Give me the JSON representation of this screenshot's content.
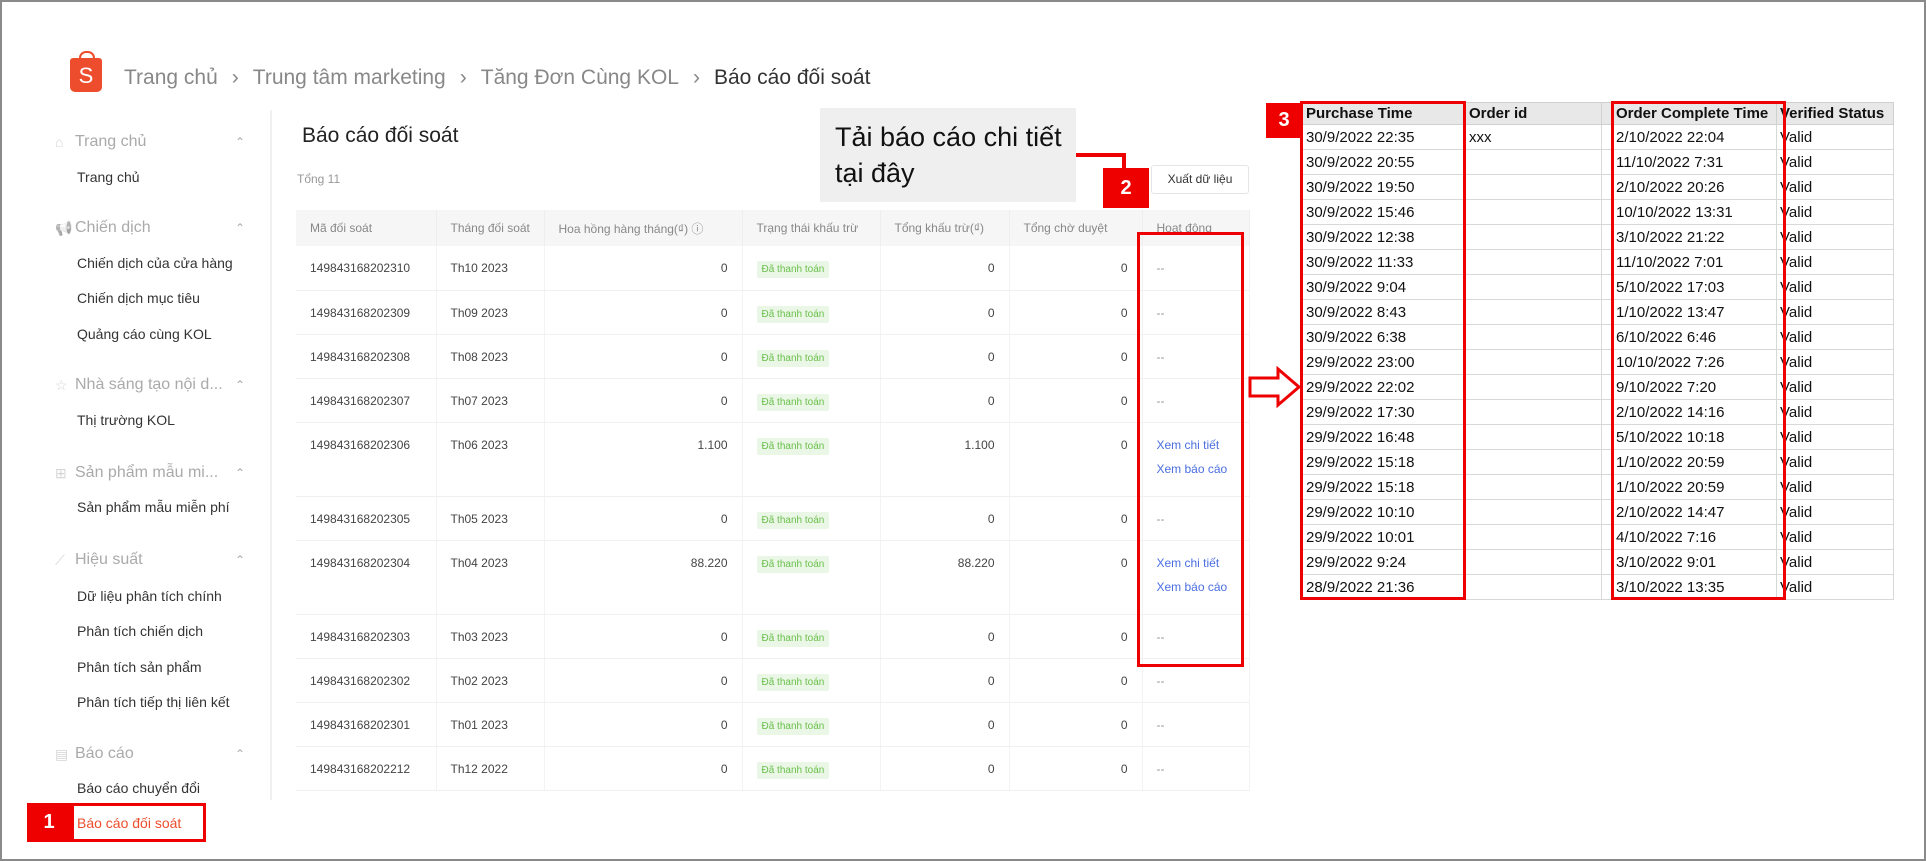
{
  "breadcrumb": [
    "Trang chủ",
    "Trung tâm marketing",
    "Tăng Đơn Cùng KOL",
    "Báo cáo đối soát"
  ],
  "logo_letter": "S",
  "sidebar": {
    "sections": [
      {
        "label": "Trang chủ",
        "icon": "home-icon",
        "items": [
          "Trang chủ"
        ]
      },
      {
        "label": "Chiến dịch",
        "icon": "megaphone-icon",
        "items": [
          "Chiến dịch của cửa hàng",
          "Chiến dịch mục tiêu",
          "Quảng cáo cùng KOL"
        ]
      },
      {
        "label": "Nhà sáng tạo nội d...",
        "icon": "star-icon",
        "items": [
          "Thị trường KOL"
        ]
      },
      {
        "label": "Sản phẩm mẫu mi...",
        "icon": "gift-icon",
        "items": [
          "Sản phẩm mẫu miễn phí"
        ]
      },
      {
        "label": "Hiệu suất",
        "icon": "chart-icon",
        "items": [
          "Dữ liệu phân tích chính",
          "Phân tích chiến dịch",
          "Phân tích sản phẩm",
          "Phân tích tiếp thị liên kết"
        ]
      },
      {
        "label": "Báo cáo",
        "icon": "report-icon",
        "items": [
          "Báo cáo chuyển đổi",
          "Báo cáo đối soát"
        ]
      }
    ],
    "active": "Báo cáo đối soát"
  },
  "main": {
    "title": "Báo cáo đối soát",
    "total": "Tổng 11",
    "export_label": "Xuất dữ liệu",
    "columns": [
      "Mã đối soát",
      "Tháng đối soát",
      "Hoa hồng hàng tháng(₫)",
      "Trạng thái khấu trừ",
      "Tổng khấu trừ(₫)",
      "Tổng chờ duyệt",
      "Hoạt động"
    ],
    "rows": [
      {
        "id": "149843168202310",
        "month": "Th10 2023",
        "commission": "0",
        "status": "Đã thanh toán",
        "deduct": "0",
        "pending": "0",
        "actions": [
          "--"
        ]
      },
      {
        "id": "149843168202309",
        "month": "Th09 2023",
        "commission": "0",
        "status": "Đã thanh toán",
        "deduct": "0",
        "pending": "0",
        "actions": [
          "--"
        ]
      },
      {
        "id": "149843168202308",
        "month": "Th08 2023",
        "commission": "0",
        "status": "Đã thanh toán",
        "deduct": "0",
        "pending": "0",
        "actions": [
          "--"
        ]
      },
      {
        "id": "149843168202307",
        "month": "Th07 2023",
        "commission": "0",
        "status": "Đã thanh toán",
        "deduct": "0",
        "pending": "0",
        "actions": [
          "--"
        ]
      },
      {
        "id": "149843168202306",
        "month": "Th06 2023",
        "commission": "1.100",
        "status": "Đã thanh toán",
        "deduct": "1.100",
        "pending": "0",
        "actions": [
          "Xem chi tiết",
          "Xem báo cáo"
        ]
      },
      {
        "id": "149843168202305",
        "month": "Th05 2023",
        "commission": "0",
        "status": "Đã thanh toán",
        "deduct": "0",
        "pending": "0",
        "actions": [
          "--"
        ]
      },
      {
        "id": "149843168202304",
        "month": "Th04 2023",
        "commission": "88.220",
        "status": "Đã thanh toán",
        "deduct": "88.220",
        "pending": "0",
        "actions": [
          "Xem chi tiết",
          "Xem báo cáo"
        ]
      },
      {
        "id": "149843168202303",
        "month": "Th03 2023",
        "commission": "0",
        "status": "Đã thanh toán",
        "deduct": "0",
        "pending": "0",
        "actions": [
          "--"
        ]
      },
      {
        "id": "149843168202302",
        "month": "Th02 2023",
        "commission": "0",
        "status": "Đã thanh toán",
        "deduct": "0",
        "pending": "0",
        "actions": [
          "--"
        ]
      },
      {
        "id": "149843168202301",
        "month": "Th01 2023",
        "commission": "0",
        "status": "Đã thanh toán",
        "deduct": "0",
        "pending": "0",
        "actions": [
          "--"
        ]
      },
      {
        "id": "149843168202212",
        "month": "Th12 2022",
        "commission": "0",
        "status": "Đã thanh toán",
        "deduct": "0",
        "pending": "0",
        "actions": [
          "--"
        ]
      }
    ]
  },
  "callout": {
    "text": "Tải báo cáo chi tiết tại đây"
  },
  "markers": [
    "1",
    "2",
    "3"
  ],
  "excel": {
    "columns": [
      "Purchase Time",
      "Order id",
      "",
      "Order Complete Time",
      "Verified Status"
    ],
    "rows": [
      [
        "30/9/2022 22:35",
        "xxx",
        "2/10/2022 22:04",
        "Valid"
      ],
      [
        "30/9/2022 20:55",
        "",
        "11/10/2022 7:31",
        "Valid"
      ],
      [
        "30/9/2022 19:50",
        "",
        "2/10/2022 20:26",
        "Valid"
      ],
      [
        "30/9/2022 15:46",
        "",
        "10/10/2022 13:31",
        "Valid"
      ],
      [
        "30/9/2022 12:38",
        "",
        "3/10/2022 21:22",
        "Valid"
      ],
      [
        "30/9/2022 11:33",
        "",
        "11/10/2022 7:01",
        "Valid"
      ],
      [
        "30/9/2022 9:04",
        "",
        "5/10/2022 17:03",
        "Valid"
      ],
      [
        "30/9/2022 8:43",
        "",
        "1/10/2022 13:47",
        "Valid"
      ],
      [
        "30/9/2022 6:38",
        "",
        "6/10/2022 6:46",
        "Valid"
      ],
      [
        "29/9/2022 23:00",
        "",
        "10/10/2022 7:26",
        "Valid"
      ],
      [
        "29/9/2022 22:02",
        "",
        "9/10/2022 7:20",
        "Valid"
      ],
      [
        "29/9/2022 17:30",
        "",
        "2/10/2022 14:16",
        "Valid"
      ],
      [
        "29/9/2022 16:48",
        "",
        "5/10/2022 10:18",
        "Valid"
      ],
      [
        "29/9/2022 15:18",
        "",
        "1/10/2022 20:59",
        "Valid"
      ],
      [
        "29/9/2022 15:18",
        "",
        "1/10/2022 20:59",
        "Valid"
      ],
      [
        "29/9/2022 10:10",
        "",
        "2/10/2022 14:47",
        "Valid"
      ],
      [
        "29/9/2022 10:01",
        "",
        "4/10/2022 7:16",
        "Valid"
      ],
      [
        "29/9/2022 9:24",
        "",
        "3/10/2022 9:01",
        "Valid"
      ],
      [
        "28/9/2022 21:36",
        "",
        "3/10/2022 13:35",
        "Valid"
      ]
    ]
  },
  "colors": {
    "brand": "#ee4d2d",
    "annotation": "#e00000",
    "link": "#4a6ee0",
    "badge_text": "#6abf4b"
  }
}
